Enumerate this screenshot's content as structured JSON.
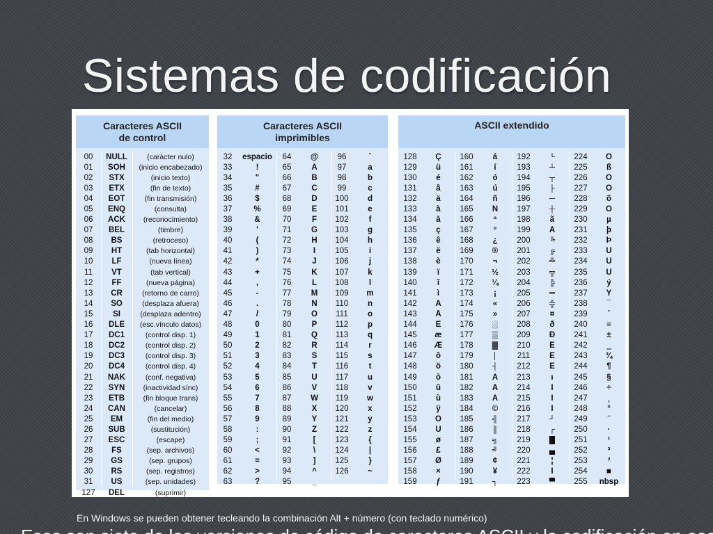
{
  "slide": {
    "title": "Sistemas de codificación",
    "caption": "En Windows se pueden obtener tecleando la combinación Alt + número (con teclado numérico)",
    "cutoff_text": "Esas son siete de las versiones de código de caracteres ASCII y la codificación en ese sentido de ..."
  },
  "control": {
    "heading": [
      "Caracteres ASCII",
      "de control"
    ],
    "rows": [
      [
        "00",
        "NULL",
        "(carácter nulo)"
      ],
      [
        "01",
        "SOH",
        "(inicio encabezado)"
      ],
      [
        "02",
        "STX",
        "(inicio texto)"
      ],
      [
        "03",
        "ETX",
        "(fin de texto)"
      ],
      [
        "04",
        "EOT",
        "(fin transmisión)"
      ],
      [
        "05",
        "ENQ",
        "(consulta)"
      ],
      [
        "06",
        "ACK",
        "(reconocimiento)"
      ],
      [
        "07",
        "BEL",
        "(timbre)"
      ],
      [
        "08",
        "BS",
        "(retroceso)"
      ],
      [
        "09",
        "HT",
        "(tab horizontal)"
      ],
      [
        "10",
        "LF",
        "(nueva línea)"
      ],
      [
        "11",
        "VT",
        "(tab vertical)"
      ],
      [
        "12",
        "FF",
        "(nueva página)"
      ],
      [
        "13",
        "CR",
        "(retorno de carro)"
      ],
      [
        "14",
        "SO",
        "(desplaza afuera)"
      ],
      [
        "15",
        "SI",
        "(desplaza adentro)"
      ],
      [
        "16",
        "DLE",
        "(esc.vínculo datos)"
      ],
      [
        "17",
        "DC1",
        "(control disp. 1)"
      ],
      [
        "18",
        "DC2",
        "(control disp. 2)"
      ],
      [
        "19",
        "DC3",
        "(control disp. 3)"
      ],
      [
        "20",
        "DC4",
        "(control disp. 4)"
      ],
      [
        "21",
        "NAK",
        "(conf. negativa)"
      ],
      [
        "22",
        "SYN",
        "(inactividad sínc)"
      ],
      [
        "23",
        "ETB",
        "(fin bloque trans)"
      ],
      [
        "24",
        "CAN",
        "(cancelar)"
      ],
      [
        "25",
        "EM",
        "(fin del medio)"
      ],
      [
        "26",
        "SUB",
        "(sustitución)"
      ],
      [
        "27",
        "ESC",
        "(escape)"
      ],
      [
        "28",
        "FS",
        "(sep. archivos)"
      ],
      [
        "29",
        "GS",
        "(sep. grupos)"
      ],
      [
        "30",
        "RS",
        "(sep. registros)"
      ],
      [
        "31",
        "US",
        "(sep. unidades)"
      ],
      [
        "127",
        "DEL",
        "(suprimir)"
      ]
    ]
  },
  "printable": {
    "heading": [
      "Caracteres ASCII",
      "imprimibles"
    ],
    "rows": [
      [
        "32",
        "espacio",
        "64",
        "@",
        "96",
        "`"
      ],
      [
        "33",
        "!",
        "65",
        "A",
        "97",
        "a"
      ],
      [
        "34",
        "\"",
        "66",
        "B",
        "98",
        "b"
      ],
      [
        "35",
        "#",
        "67",
        "C",
        "99",
        "c"
      ],
      [
        "36",
        "$",
        "68",
        "D",
        "100",
        "d"
      ],
      [
        "37",
        "%",
        "69",
        "E",
        "101",
        "e"
      ],
      [
        "38",
        "&",
        "70",
        "F",
        "102",
        "f"
      ],
      [
        "39",
        "'",
        "71",
        "G",
        "103",
        "g"
      ],
      [
        "40",
        "(",
        "72",
        "H",
        "104",
        "h"
      ],
      [
        "41",
        ")",
        "73",
        "I",
        "105",
        "i"
      ],
      [
        "42",
        "*",
        "74",
        "J",
        "106",
        "j"
      ],
      [
        "43",
        "+",
        "75",
        "K",
        "107",
        "k"
      ],
      [
        "44",
        ",",
        "76",
        "L",
        "108",
        "l"
      ],
      [
        "45",
        "-",
        "77",
        "M",
        "109",
        "m"
      ],
      [
        "46",
        ".",
        "78",
        "N",
        "110",
        "n"
      ],
      [
        "47",
        "/",
        "79",
        "O",
        "111",
        "o"
      ],
      [
        "48",
        "0",
        "80",
        "P",
        "112",
        "p"
      ],
      [
        "49",
        "1",
        "81",
        "Q",
        "113",
        "q"
      ],
      [
        "50",
        "2",
        "82",
        "R",
        "114",
        "r"
      ],
      [
        "51",
        "3",
        "83",
        "S",
        "115",
        "s"
      ],
      [
        "52",
        "4",
        "84",
        "T",
        "116",
        "t"
      ],
      [
        "53",
        "5",
        "85",
        "U",
        "117",
        "u"
      ],
      [
        "54",
        "6",
        "86",
        "V",
        "118",
        "v"
      ],
      [
        "55",
        "7",
        "87",
        "W",
        "119",
        "w"
      ],
      [
        "56",
        "8",
        "88",
        "X",
        "120",
        "x"
      ],
      [
        "57",
        "9",
        "89",
        "Y",
        "121",
        "y"
      ],
      [
        "58",
        ":",
        "90",
        "Z",
        "122",
        "z"
      ],
      [
        "59",
        ";",
        "91",
        "[",
        "123",
        "{"
      ],
      [
        "60",
        "<",
        "92",
        "\\",
        "124",
        "|"
      ],
      [
        "61",
        "=",
        "93",
        "]",
        "125",
        "}"
      ],
      [
        "62",
        ">",
        "94",
        "^",
        "126",
        "~"
      ],
      [
        "63",
        "?",
        "95",
        "_",
        "",
        ""
      ]
    ]
  },
  "extended": {
    "heading": [
      "ASCII extendido"
    ],
    "rows": [
      [
        "128",
        "Ç",
        "160",
        "á",
        "192",
        "└",
        "224",
        "Ó"
      ],
      [
        "129",
        "ü",
        "161",
        "í",
        "193",
        "┴",
        "225",
        "ß"
      ],
      [
        "130",
        "é",
        "162",
        "ó",
        "194",
        "┬",
        "226",
        "Ô"
      ],
      [
        "131",
        "â",
        "163",
        "ú",
        "195",
        "├",
        "227",
        "Ò"
      ],
      [
        "132",
        "ä",
        "164",
        "ñ",
        "196",
        "─",
        "228",
        "õ"
      ],
      [
        "133",
        "à",
        "165",
        "Ñ",
        "197",
        "┼",
        "229",
        "Õ"
      ],
      [
        "134",
        "å",
        "166",
        "ª",
        "198",
        "ã",
        "230",
        "µ"
      ],
      [
        "135",
        "ç",
        "167",
        "º",
        "199",
        "Ã",
        "231",
        "þ"
      ],
      [
        "136",
        "ê",
        "168",
        "¿",
        "200",
        "╚",
        "232",
        "Þ"
      ],
      [
        "137",
        "ë",
        "169",
        "®",
        "201",
        "╔",
        "233",
        "Ú"
      ],
      [
        "138",
        "è",
        "170",
        "¬",
        "202",
        "╩",
        "234",
        "Û"
      ],
      [
        "139",
        "ï",
        "171",
        "½",
        "203",
        "╦",
        "235",
        "Ù"
      ],
      [
        "140",
        "î",
        "172",
        "¼",
        "204",
        "╠",
        "236",
        "ý"
      ],
      [
        "141",
        "ì",
        "173",
        "¡",
        "205",
        "═",
        "237",
        "Ý"
      ],
      [
        "142",
        "Ä",
        "174",
        "«",
        "206",
        "╬",
        "238",
        "¯"
      ],
      [
        "143",
        "Å",
        "175",
        "»",
        "207",
        "¤",
        "239",
        "´"
      ],
      [
        "144",
        "É",
        "176",
        "░",
        "208",
        "ð",
        "240",
        "≡"
      ],
      [
        "145",
        "æ",
        "177",
        "▒",
        "209",
        "Ð",
        "241",
        "±"
      ],
      [
        "146",
        "Æ",
        "178",
        "▓",
        "210",
        "Ê",
        "242",
        "‗"
      ],
      [
        "147",
        "ô",
        "179",
        "│",
        "211",
        "Ë",
        "243",
        "¾"
      ],
      [
        "148",
        "ö",
        "180",
        "┤",
        "212",
        "È",
        "244",
        "¶"
      ],
      [
        "149",
        "ò",
        "181",
        "Á",
        "213",
        "ı",
        "245",
        "§"
      ],
      [
        "150",
        "û",
        "182",
        "Â",
        "214",
        "Í",
        "246",
        "÷"
      ],
      [
        "151",
        "ù",
        "183",
        "À",
        "215",
        "Î",
        "247",
        "¸"
      ],
      [
        "152",
        "ÿ",
        "184",
        "©",
        "216",
        "Ï",
        "248",
        "°"
      ],
      [
        "153",
        "Ö",
        "185",
        "╣",
        "217",
        "┘",
        "249",
        "¨"
      ],
      [
        "154",
        "Ü",
        "186",
        "║",
        "218",
        "┌",
        "250",
        "·"
      ],
      [
        "155",
        "ø",
        "187",
        "╗",
        "219",
        "█",
        "251",
        "¹"
      ],
      [
        "156",
        "£",
        "188",
        "╝",
        "220",
        "▄",
        "252",
        "³"
      ],
      [
        "157",
        "Ø",
        "189",
        "¢",
        "221",
        "¦",
        "253",
        "²"
      ],
      [
        "158",
        "×",
        "190",
        "¥",
        "222",
        "Ì",
        "254",
        "■"
      ],
      [
        "159",
        "ƒ",
        "191",
        "┐",
        "223",
        "▀",
        "255",
        "nbsp"
      ]
    ]
  }
}
